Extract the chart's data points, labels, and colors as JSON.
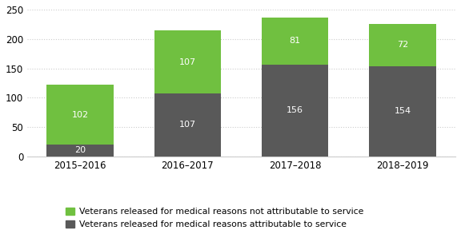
{
  "categories": [
    "2015–2016",
    "2016–2017",
    "2017–2018",
    "2018–2019"
  ],
  "attributable": [
    20,
    107,
    156,
    154
  ],
  "not_attributable": [
    102,
    107,
    81,
    72
  ],
  "color_attributable": "#595959",
  "color_not_attributable": "#70c040",
  "ylim": [
    0,
    250
  ],
  "yticks": [
    0,
    50,
    100,
    150,
    200,
    250
  ],
  "legend_not_attr": "Veterans released for medical reasons not attributable to service",
  "legend_attr": "Veterans released for medical reasons attributable to service",
  "background_color": "#ffffff",
  "grid_color": "#cccccc",
  "label_fontsize": 8,
  "tick_fontsize": 8.5,
  "legend_fontsize": 7.8,
  "bar_width": 0.62
}
